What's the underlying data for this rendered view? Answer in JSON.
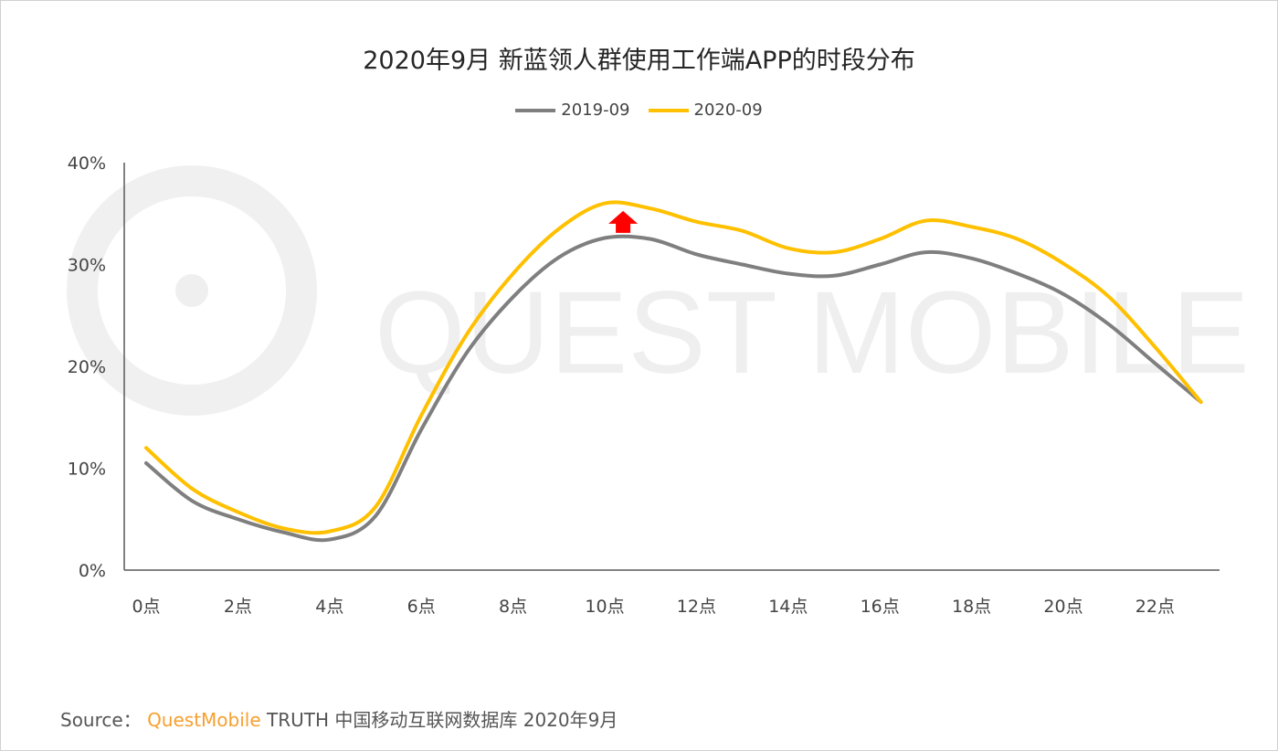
{
  "chart_data": {
    "type": "line",
    "title": "2020年9月 新蓝领人群使用工作端APP的时段分布",
    "xlabel": "",
    "ylabel": "",
    "x": [
      0,
      1,
      2,
      3,
      4,
      5,
      6,
      7,
      8,
      9,
      10,
      11,
      12,
      13,
      14,
      15,
      16,
      17,
      18,
      19,
      20,
      21,
      22,
      23
    ],
    "x_tick_labels": [
      "0点",
      "2点",
      "4点",
      "6点",
      "8点",
      "10点",
      "12点",
      "14点",
      "16点",
      "18点",
      "20点",
      "22点"
    ],
    "x_tick_values": [
      0,
      2,
      4,
      6,
      8,
      10,
      12,
      14,
      16,
      18,
      20,
      22
    ],
    "y_tick_labels": [
      "0%",
      "10%",
      "20%",
      "30%",
      "40%"
    ],
    "y_tick_values": [
      0,
      10,
      20,
      30,
      40
    ],
    "ylim": [
      0,
      40
    ],
    "xlim": [
      -0.5,
      23.5
    ],
    "grid": false,
    "legend_position": "top",
    "series": [
      {
        "name": "2019-09",
        "color": "#7f7f7f",
        "values": [
          10.5,
          6.8,
          5.0,
          3.7,
          3.0,
          5.3,
          13.8,
          21.4,
          26.8,
          30.7,
          32.6,
          32.5,
          31.0,
          30.0,
          29.1,
          28.9,
          30.0,
          31.2,
          30.6,
          29.1,
          27.1,
          24.1,
          20.3,
          16.5
        ]
      },
      {
        "name": "2020-09",
        "color": "#ffc000",
        "values": [
          12.0,
          8.0,
          5.7,
          4.1,
          3.8,
          6.2,
          15.2,
          23.2,
          29.1,
          33.5,
          36.0,
          35.5,
          34.2,
          33.3,
          31.6,
          31.2,
          32.5,
          34.3,
          33.7,
          32.5,
          30.1,
          26.8,
          21.9,
          16.5
        ]
      }
    ],
    "annotations": [
      {
        "type": "up-arrow",
        "color": "#ff0000",
        "x": 10.4,
        "y": 34.0
      }
    ]
  },
  "watermark": "QUEST MOBILE",
  "source": {
    "prefix": "Source：",
    "brand": "QuestMobile",
    "text": "TRUTH 中国移动互联网数据库 2020年9月"
  }
}
